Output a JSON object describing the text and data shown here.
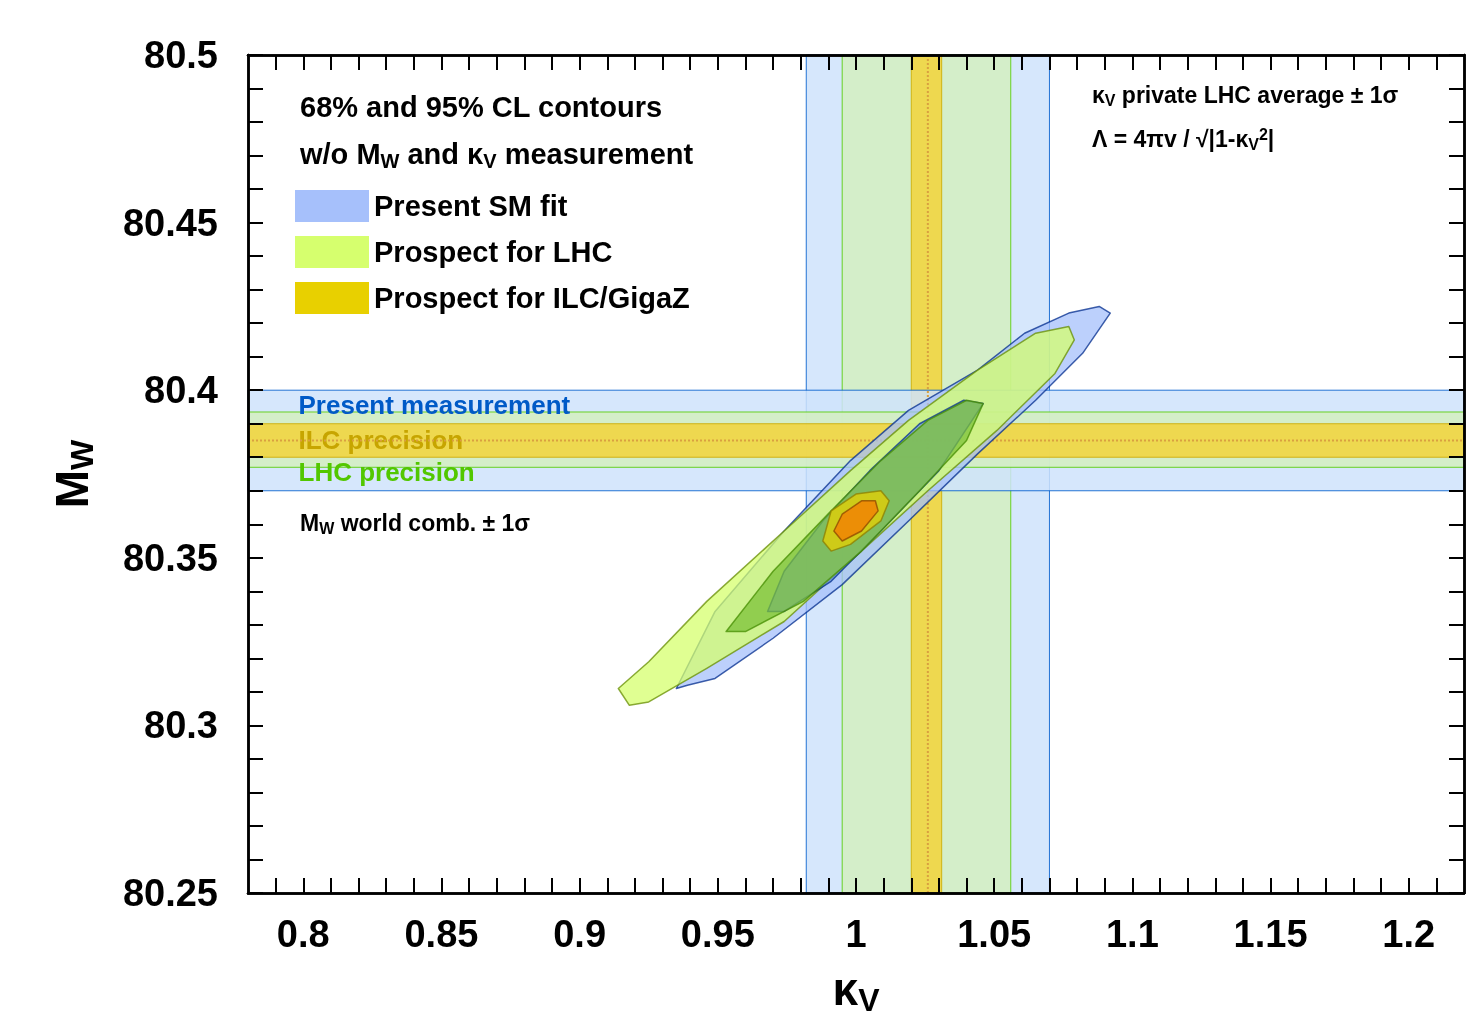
{
  "chart_data": {
    "type": "area",
    "xlabel": "κ$_{V}$",
    "ylabel": "M$_{W}$",
    "legend_title": "68% and 95% CL contours\nw/o M$_{W}$ and κ$_{V}$ measurement",
    "xlim": [
      0.78,
      1.22
    ],
    "xticks": [
      {
        "value": 0.79,
        "label": null
      },
      0.8,
      {
        "value": 0.81,
        "label": null
      },
      {
        "value": 0.82,
        "label": null
      },
      {
        "value": 0.83,
        "label": null
      },
      {
        "value": 0.84,
        "label": null
      },
      0.85,
      {
        "value": 0.86,
        "label": null
      },
      {
        "value": 0.87,
        "label": null
      },
      {
        "value": 0.88,
        "label": null
      },
      {
        "value": 0.89,
        "label": null
      },
      0.9,
      {
        "value": 0.91,
        "label": null
      },
      {
        "value": 0.92,
        "label": null
      },
      {
        "value": 0.93,
        "label": null
      },
      {
        "value": 0.94,
        "label": null
      },
      0.95,
      {
        "value": 0.96,
        "label": null
      },
      {
        "value": 0.97,
        "label": null
      },
      {
        "value": 0.98,
        "label": null
      },
      {
        "value": 0.99,
        "label": null
      },
      1,
      {
        "value": 1.01,
        "label": null
      },
      {
        "value": 1.02,
        "label": null
      },
      {
        "value": 1.03,
        "label": null
      },
      {
        "value": 1.04,
        "label": null
      },
      1.05,
      {
        "value": 1.06,
        "label": null
      },
      {
        "value": 1.07,
        "label": null
      },
      {
        "value": 1.08,
        "label": null
      },
      {
        "value": 1.09,
        "label": null
      },
      1.1,
      {
        "value": 1.11,
        "label": null
      },
      {
        "value": 1.12,
        "label": null
      },
      {
        "value": 1.13,
        "label": null
      },
      {
        "value": 1.14,
        "label": null
      },
      1.15,
      {
        "value": 1.16,
        "label": null
      },
      {
        "value": 1.17,
        "label": null
      },
      {
        "value": 1.18,
        "label": null
      },
      {
        "value": 1.19,
        "label": null
      },
      1.2,
      {
        "value": 1.21,
        "label": null
      }
    ],
    "ylim": [
      80.25,
      80.5
    ],
    "yticks": [
      80.25,
      {
        "value": 80.26,
        "label": null
      },
      {
        "value": 80.27,
        "label": null
      },
      {
        "value": 80.28,
        "label": null
      },
      {
        "value": 80.29,
        "label": null
      },
      80.3,
      {
        "value": 80.31,
        "label": null
      },
      {
        "value": 80.32,
        "label": null
      },
      {
        "value": 80.33,
        "label": null
      },
      {
        "value": 80.34,
        "label": null
      },
      80.35,
      {
        "value": 80.36,
        "label": null
      },
      {
        "value": 80.37,
        "label": null
      },
      {
        "value": 80.38,
        "label": null
      },
      {
        "value": 80.39,
        "label": null
      },
      80.4,
      {
        "value": 80.41,
        "label": null
      },
      {
        "value": 80.42,
        "label": null
      },
      {
        "value": 80.43,
        "label": null
      },
      {
        "value": 80.44,
        "label": null
      },
      80.45,
      {
        "value": 80.46,
        "label": null
      },
      {
        "value": 80.47,
        "label": null
      },
      {
        "value": 80.48,
        "label": null
      },
      {
        "value": 80.49,
        "label": null
      },
      80.5
    ],
    "legend": "top left",
    "grid": false,
    "bands": [
      {
        "axis": "x",
        "from": 0.982,
        "to": 1.07,
        "color": "#cfe3fb"
      },
      {
        "axis": "x",
        "from": 0.995,
        "to": 1.056,
        "color": "#d3eec0"
      },
      {
        "axis": "x",
        "from": 1.02,
        "to": 1.031,
        "color": "#f2d33a"
      },
      {
        "axis": "y",
        "from": 80.37,
        "to": 80.4,
        "label": "Present measurement",
        "color": "#cfe3fb"
      },
      {
        "axis": "y",
        "from": 80.377,
        "to": 80.3935,
        "label": "LHC precision",
        "color": "#d3eec0"
      },
      {
        "axis": "y",
        "from": 80.38,
        "to": 80.39,
        "label": "ILC precision",
        "color": "#f2d33a"
      }
    ],
    "ref_lines": [
      {
        "axis": "x",
        "value": 1.026,
        "color": "#d9a040",
        "line_style": "dotted"
      },
      {
        "axis": "y",
        "value": 80.385,
        "color": "#d9a040",
        "line_style": "dotted"
      }
    ],
    "annotations": [
      "M$_{W}$ world comb. ± 1σ",
      "κ$_{V}$ private LHC average ± 1σ",
      "Λ = 4πv / √|1-κ$_{V}$$^{2}$|"
    ],
    "series": [
      {
        "name": "Present SM fit",
        "color": "#a6c0fb",
        "x": [
          1.092,
          1.088,
          1.077,
          1.061,
          1.044,
          1.019,
          0.998,
          0.974,
          0.949,
          0.935,
          0.939,
          0.949,
          0.97,
          0.995,
          1.019,
          1.044,
          1.065,
          1.082,
          1.092
        ],
        "values": [
          80.423,
          80.425,
          80.423,
          80.417,
          80.406,
          80.394,
          80.379,
          80.358,
          80.334,
          80.311,
          80.312,
          80.314,
          80.326,
          80.342,
          80.361,
          80.381,
          80.397,
          80.411,
          80.423
        ]
      },
      {
        "name": "Prospect for LHC",
        "color": "#d6ff6e",
        "x": [
          0.914,
          0.918,
          0.925,
          0.946,
          0.974,
          0.998,
          1.026,
          1.051,
          1.072,
          1.079,
          1.077,
          1.065,
          1.044,
          1.019,
          0.998,
          0.974,
          0.946,
          0.925,
          0.914
        ],
        "values": [
          80.311,
          80.306,
          80.307,
          80.317,
          80.331,
          80.349,
          80.37,
          80.388,
          80.405,
          80.415,
          80.419,
          80.417,
          80.406,
          80.391,
          80.376,
          80.358,
          80.337,
          80.319,
          80.311
        ]
      },
      {
        "color": "#6f97ea",
        "x": [
          0.968,
          0.974,
          0.991,
          1.009,
          1.03,
          1.042,
          1.046,
          1.039,
          1.023,
          1.005,
          0.988,
          0.974,
          0.968
        ],
        "values": [
          80.334,
          80.334,
          80.343,
          80.358,
          80.376,
          80.391,
          80.396,
          80.397,
          80.39,
          80.376,
          80.361,
          80.346,
          80.334
        ]
      },
      {
        "color": "#7cc23a",
        "x": [
          0.953,
          0.96,
          0.981,
          1.002,
          1.023,
          1.04,
          1.046,
          1.04,
          1.026,
          1.009,
          0.991,
          0.97,
          0.953
        ],
        "values": [
          80.328,
          80.328,
          80.337,
          80.352,
          80.37,
          80.385,
          80.396,
          80.397,
          80.391,
          80.379,
          80.364,
          80.346,
          80.328
        ]
      },
      {
        "name": "Prospect for ILC/GigaZ",
        "color": "#e8d000",
        "x": [
          0.988,
          0.991,
          0.998,
          1.009,
          1.012,
          1.009,
          1.0,
          0.991,
          0.988
        ],
        "values": [
          80.355,
          80.352,
          80.354,
          80.361,
          80.367,
          80.37,
          80.369,
          80.364,
          80.355
        ]
      },
      {
        "color": "#f57a00",
        "x": [
          0.992,
          0.995,
          1.002,
          1.008,
          1.007,
          1.002,
          0.995,
          0.992
        ],
        "values": [
          80.358,
          80.355,
          80.358,
          80.364,
          80.367,
          80.367,
          80.363,
          80.358
        ]
      }
    ]
  }
}
